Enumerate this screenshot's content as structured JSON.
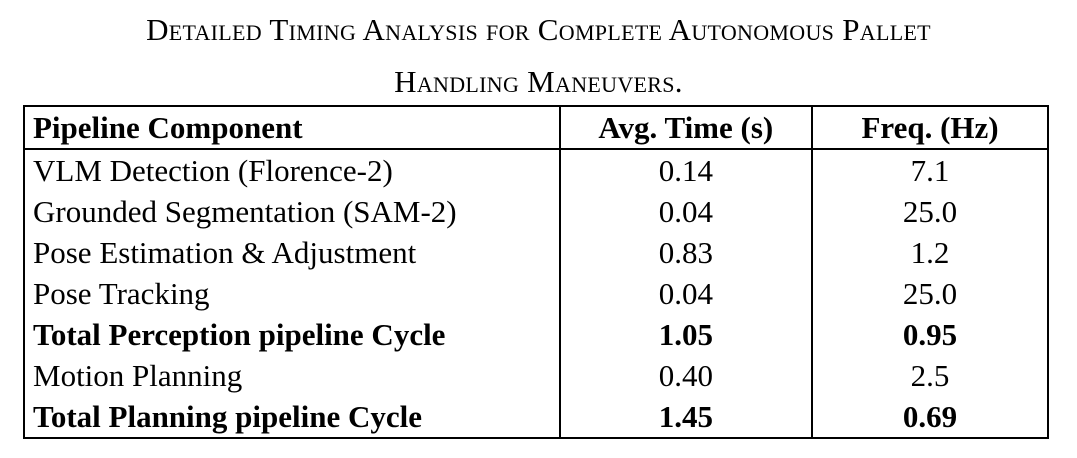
{
  "caption": {
    "line1": "Detailed Timing Analysis for Complete Autonomous Pallet",
    "line2": "Handling Maneuvers."
  },
  "table": {
    "headers": {
      "component": "Pipeline Component",
      "time": "Avg. Time (s)",
      "freq": "Freq. (Hz)"
    },
    "rows": [
      {
        "component": "VLM Detection (Florence-2)",
        "time": "0.14",
        "freq": "7.1",
        "bold": false
      },
      {
        "component": "Grounded Segmentation (SAM-2)",
        "time": "0.04",
        "freq": "25.0",
        "bold": false
      },
      {
        "component": "Pose Estimation & Adjustment",
        "time": "0.83",
        "freq": "1.2",
        "bold": false
      },
      {
        "component": "Pose Tracking",
        "time": "0.04",
        "freq": "25.0",
        "bold": false
      },
      {
        "component": "Total Perception pipeline Cycle",
        "time": "1.05",
        "freq": "0.95",
        "bold": true
      },
      {
        "component": "Motion Planning",
        "time": "0.40",
        "freq": "2.5",
        "bold": false
      },
      {
        "component": "Total Planning pipeline Cycle",
        "time": "1.45",
        "freq": "0.69",
        "bold": true
      }
    ]
  }
}
